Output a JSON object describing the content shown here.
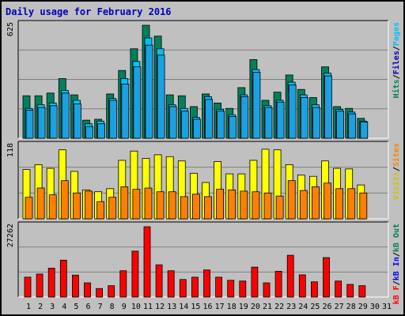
{
  "title": "Daily usage for February 2016",
  "colors": {
    "hits": "#00805c",
    "files": "#00c0ff",
    "pages": "#1ba1e2",
    "visits": "#ffff00",
    "sites": "#ff8000",
    "kb_in": "#0000ff",
    "kb_out": "#00805c",
    "kb_f": "#ff0000",
    "weekend_day": "#00805c",
    "weekday": "#000000"
  },
  "chart_data": [
    {
      "type": "bar",
      "panel": "hits-files-pages",
      "max_label": "625",
      "ylim": [
        0,
        625
      ],
      "categories": [
        "1",
        "2",
        "3",
        "4",
        "5",
        "6",
        "7",
        "8",
        "9",
        "10",
        "11",
        "12",
        "13",
        "14",
        "15",
        "16",
        "17",
        "18",
        "19",
        "20",
        "21",
        "22",
        "23",
        "24",
        "25",
        "26",
        "27",
        "28",
        "29",
        "30",
        "31"
      ],
      "legend": [
        {
          "text": "Hits",
          "color": "#00805c"
        },
        {
          "text": "/",
          "color": "#000000"
        },
        {
          "text": "Files",
          "color": "#0000c0"
        },
        {
          "text": "/",
          "color": "#000000"
        },
        {
          "text": "Pages",
          "color": "#00c0ff"
        }
      ],
      "series": [
        {
          "name": "Hits",
          "values": [
            235,
            235,
            250,
            330,
            240,
            100,
            105,
            245,
            375,
            495,
            625,
            565,
            240,
            235,
            175,
            245,
            195,
            165,
            280,
            435,
            210,
            255,
            350,
            270,
            225,
            395,
            175,
            165,
            110,
            null,
            null
          ]
        },
        {
          "name": "Files",
          "values": [
            165,
            185,
            195,
            265,
            210,
            80,
            95,
            220,
            330,
            425,
            555,
            495,
            185,
            165,
            115,
            230,
            160,
            130,
            240,
            380,
            180,
            210,
            310,
            240,
            185,
            360,
            160,
            145,
            95,
            null,
            null
          ]
        },
        {
          "name": "Pages",
          "values": [
            155,
            170,
            180,
            250,
            190,
            65,
            80,
            210,
            300,
            395,
            515,
            460,
            175,
            150,
            105,
            215,
            150,
            120,
            230,
            365,
            170,
            200,
            295,
            225,
            170,
            345,
            150,
            135,
            90,
            null,
            null
          ]
        }
      ]
    },
    {
      "type": "bar",
      "panel": "visits-sites",
      "max_label": "118",
      "ylim": [
        0,
        118
      ],
      "categories": [
        "1",
        "2",
        "3",
        "4",
        "5",
        "6",
        "7",
        "8",
        "9",
        "10",
        "11",
        "12",
        "13",
        "14",
        "15",
        "16",
        "17",
        "18",
        "19",
        "20",
        "21",
        "22",
        "23",
        "24",
        "25",
        "26",
        "27",
        "28",
        "29",
        "30",
        "31"
      ],
      "legend": [
        {
          "text": "Visits",
          "color": "#c8c800"
        },
        {
          "text": "/",
          "color": "#000000"
        },
        {
          "text": "Sites",
          "color": "#ff8000"
        }
      ],
      "series": [
        {
          "name": "Visits",
          "values": [
            80,
            88,
            82,
            112,
            77,
            47,
            44,
            49,
            95,
            110,
            98,
            104,
            101,
            94,
            74,
            59,
            93,
            73,
            73,
            95,
            113,
            112,
            88,
            71,
            69,
            94,
            82,
            81,
            55,
            null,
            null
          ]
        },
        {
          "name": "Sites",
          "values": [
            35,
            50,
            39,
            62,
            42,
            45,
            28,
            35,
            52,
            48,
            50,
            44,
            44,
            36,
            40,
            36,
            48,
            47,
            45,
            44,
            42,
            37,
            62,
            46,
            52,
            58,
            49,
            49,
            42,
            null,
            null
          ]
        }
      ]
    },
    {
      "type": "bar",
      "panel": "kbytes",
      "max_label": "27262",
      "ylim": [
        0,
        27262
      ],
      "categories": [
        "1",
        "2",
        "3",
        "4",
        "5",
        "6",
        "7",
        "8",
        "9",
        "10",
        "11",
        "12",
        "13",
        "14",
        "15",
        "16",
        "17",
        "18",
        "19",
        "20",
        "21",
        "22",
        "23",
        "24",
        "25",
        "26",
        "27",
        "28",
        "29",
        "30",
        "31"
      ],
      "legend": [
        {
          "text": "kB F",
          "color": "#ff0000"
        },
        {
          "text": "/",
          "color": "#000000"
        },
        {
          "text": "kB In",
          "color": "#0000ff"
        },
        {
          "text": "/",
          "color": "#000000"
        },
        {
          "text": "kB Out",
          "color": "#00805c"
        }
      ],
      "series": [
        {
          "name": "kB F",
          "values": [
            7700,
            8900,
            11200,
            14300,
            8500,
            5500,
            3300,
            4400,
            10200,
            17800,
            27262,
            12500,
            10200,
            6800,
            7700,
            10500,
            7700,
            6500,
            6200,
            11600,
            5500,
            10000,
            16200,
            8600,
            5900,
            15300,
            6200,
            4900,
            4400,
            null,
            null
          ]
        }
      ]
    }
  ],
  "weekend_days": [
    6,
    7,
    13,
    14,
    20,
    21,
    27,
    28
  ]
}
